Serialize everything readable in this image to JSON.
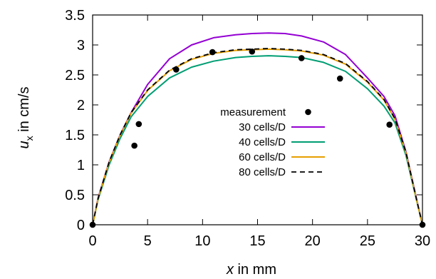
{
  "chart_data": {
    "type": "line",
    "xlabel": {
      "var": "x",
      "rest": " in mm"
    },
    "ylabel": {
      "var": "u",
      "sub": "x",
      "rest": " in cm/s"
    },
    "xlim": [
      0,
      30
    ],
    "ylim": [
      0,
      3.5
    ],
    "xticks": [
      0,
      5,
      10,
      15,
      20,
      25,
      30
    ],
    "yticks": [
      0,
      0.5,
      1,
      1.5,
      2,
      2.5,
      3,
      3.5
    ],
    "grid": false,
    "legend_position": "center",
    "series": [
      {
        "name": "measurement",
        "kind": "points",
        "color": "#000000",
        "x": [
          0,
          3.8,
          4.2,
          7.6,
          10.9,
          14.5,
          19.0,
          22.5,
          27.0,
          30.0
        ],
        "y": [
          0,
          1.32,
          1.68,
          2.59,
          2.88,
          2.89,
          2.78,
          2.44,
          1.67,
          0
        ]
      },
      {
        "name": "30 cells/D",
        "kind": "line",
        "color": "#9400d3",
        "x": [
          0,
          0.5,
          1.5,
          2.5,
          3.5,
          5.0,
          7.0,
          9.0,
          11.0,
          13.0,
          14.5,
          16.0,
          17.5,
          19.0,
          21.0,
          23.0,
          25.0,
          26.5,
          27.5,
          28.5,
          29.5,
          30.0
        ],
        "y": [
          0,
          0.45,
          1.05,
          1.5,
          1.87,
          2.34,
          2.77,
          3.0,
          3.12,
          3.17,
          3.19,
          3.2,
          3.19,
          3.15,
          3.05,
          2.84,
          2.45,
          2.14,
          1.82,
          1.22,
          0.4,
          0
        ]
      },
      {
        "name": "40 cells/D",
        "kind": "line",
        "color": "#009e73",
        "x": [
          0,
          0.5,
          1.5,
          2.5,
          3.5,
          5.0,
          7.0,
          9.0,
          11.0,
          13.0,
          14.5,
          16.0,
          17.5,
          19.0,
          21.0,
          23.0,
          25.0,
          26.5,
          27.5,
          28.5,
          29.5,
          30.0
        ],
        "y": [
          0,
          0.42,
          1.0,
          1.44,
          1.8,
          2.14,
          2.45,
          2.63,
          2.73,
          2.79,
          2.81,
          2.82,
          2.81,
          2.79,
          2.71,
          2.56,
          2.27,
          1.98,
          1.7,
          1.16,
          0.38,
          0
        ]
      },
      {
        "name": "60 cells/D",
        "kind": "line",
        "color": "#e69f00",
        "x": [
          0,
          0.5,
          1.5,
          2.5,
          3.5,
          5.0,
          7.0,
          9.0,
          11.0,
          13.0,
          14.5,
          16.0,
          17.5,
          19.0,
          21.0,
          23.0,
          25.0,
          26.5,
          27.5,
          28.5,
          29.5,
          30.0
        ],
        "y": [
          0,
          0.44,
          1.04,
          1.49,
          1.86,
          2.24,
          2.57,
          2.76,
          2.86,
          2.91,
          2.92,
          2.93,
          2.92,
          2.9,
          2.83,
          2.68,
          2.38,
          2.08,
          1.76,
          1.2,
          0.39,
          0
        ]
      },
      {
        "name": "80 cells/D",
        "kind": "dashed",
        "color": "#000000",
        "x": [
          0,
          0.5,
          1.5,
          2.5,
          3.5,
          5.0,
          7.0,
          9.0,
          11.0,
          13.0,
          14.5,
          16.0,
          17.5,
          19.0,
          21.0,
          23.0,
          25.0,
          26.5,
          27.5,
          28.5,
          29.5,
          30.0
        ],
        "y": [
          0,
          0.44,
          1.05,
          1.5,
          1.87,
          2.25,
          2.58,
          2.77,
          2.87,
          2.92,
          2.93,
          2.94,
          2.93,
          2.91,
          2.84,
          2.69,
          2.39,
          2.09,
          1.77,
          1.21,
          0.39,
          0
        ]
      }
    ]
  }
}
